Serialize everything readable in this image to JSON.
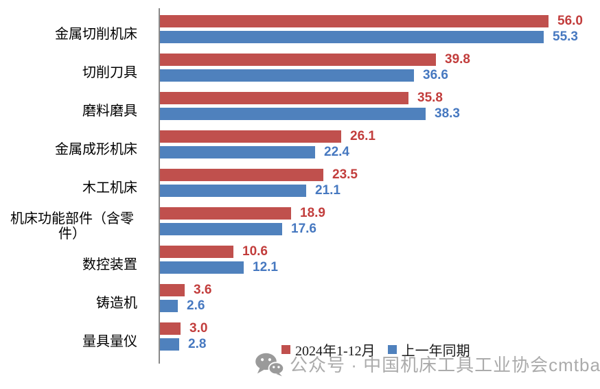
{
  "chart_data": {
    "type": "bar",
    "orientation": "horizontal",
    "title": "",
    "categories": [
      "金属切削机床",
      "切削刀具",
      "磨料磨具",
      "金属成形机床",
      "木工机床",
      "机床功能部件（含零件）",
      "数控装置",
      "铸造机",
      "量具量仪"
    ],
    "series": [
      {
        "name": "2024年1-12月",
        "color": "#C0504D",
        "label_color": "#C23D3C",
        "values": [
          56.0,
          39.8,
          35.8,
          26.1,
          23.5,
          18.9,
          10.6,
          3.6,
          3.0
        ]
      },
      {
        "name": "上一年同期",
        "color": "#4F81BD",
        "label_color": "#4678C0",
        "values": [
          55.3,
          36.6,
          38.3,
          22.4,
          21.1,
          17.6,
          12.1,
          2.6,
          2.8
        ]
      }
    ],
    "xlim": [
      0,
      56
    ],
    "value_labels": true,
    "value_label_decimals": 1,
    "grid": false,
    "legend_position": "bottom",
    "axis_color": "#898989"
  },
  "watermark": {
    "icon": "wechat-icon",
    "text": "公众号 · 中国机床工具工业协会cmtba"
  }
}
